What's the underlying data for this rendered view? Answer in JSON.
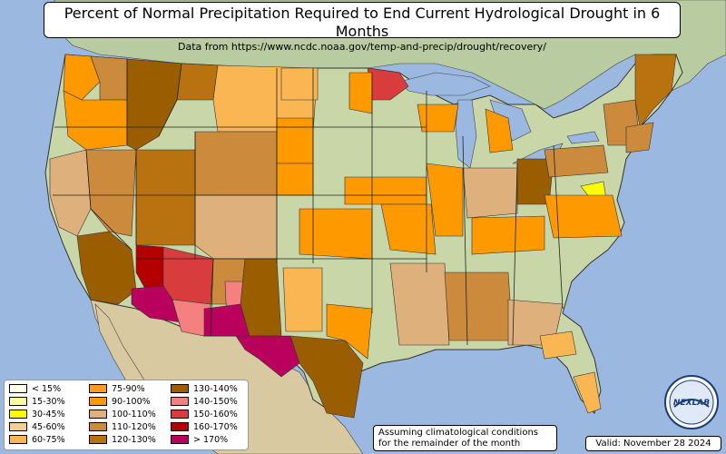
{
  "title": "Percent of Normal Precipitation Required to End Current Hydrological Drought in 6 Months",
  "subtitle": "Data from https://www.ncdc.noaa.gov/temp-and-precip/drought/recovery/",
  "note_line1": "Assuming climatological conditions",
  "note_line2": "for the remainder of the month",
  "valid": "Valid: November 28 2024",
  "logo_text": "NEXLAB",
  "colors": {
    "ocean": "#9bb8e0",
    "land": "#c8d6a8",
    "desert": "#d9c9a0",
    "canada": "#b9cba0"
  },
  "legend": [
    {
      "label": "< 15%",
      "color": "#ffffe6"
    },
    {
      "label": "15-30%",
      "color": "#ffffa0"
    },
    {
      "label": "30-45%",
      "color": "#ffff00"
    },
    {
      "label": "45-60%",
      "color": "#f7d090"
    },
    {
      "label": "60-75%",
      "color": "#fbb654"
    },
    {
      "label": "75-90%",
      "color": "#ff9a1e"
    },
    {
      "label": "90-100%",
      "color": "#ff9900"
    },
    {
      "label": "100-110%",
      "color": "#ddb07c"
    },
    {
      "label": "110-120%",
      "color": "#cc8a3c"
    },
    {
      "label": "120-130%",
      "color": "#b87310"
    },
    {
      "label": "130-140%",
      "color": "#9a5e00"
    },
    {
      "label": "140-150%",
      "color": "#f48080"
    },
    {
      "label": "150-160%",
      "color": "#d83c3c"
    },
    {
      "label": "160-170%",
      "color": "#b40000"
    },
    {
      "label": "> 170%",
      "color": "#b8005c"
    }
  ]
}
